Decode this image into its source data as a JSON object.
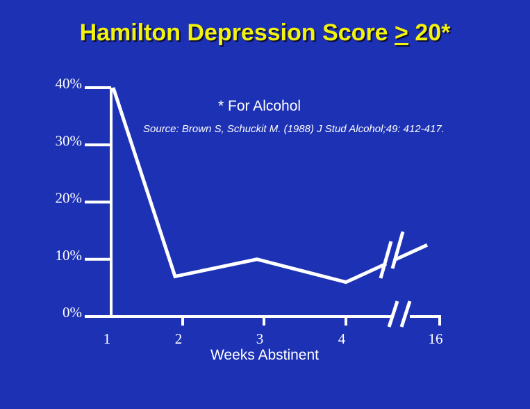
{
  "title": {
    "prefix": "Hamilton Depression Score ",
    "operator": ">",
    "suffix": " 20*"
  },
  "notes": {
    "footnote": "* For Alcohol",
    "source": "Source: Brown S, Schuckit M. (1988) J Stud Alcohol;49: 412-417."
  },
  "colors": {
    "background": "#1d31b4",
    "title": "#f2f20f",
    "ink": "#ffffff"
  },
  "chart_data": {
    "type": "line",
    "title": "Hamilton Depression Score > 20*",
    "xlabel": "Weeks Abstinent",
    "ylabel": "",
    "categories": [
      "1",
      "2",
      "3",
      "4",
      "16"
    ],
    "x_axis_break": "between 4 and 16",
    "ylim": [
      0,
      40
    ],
    "y_ticks": [
      0,
      10,
      20,
      30,
      40
    ],
    "y_tick_labels": [
      "0%",
      "10%",
      "20%",
      "30%",
      "40%"
    ],
    "series": [
      {
        "values": [
          40,
          7,
          10,
          6,
          12.5
        ]
      }
    ],
    "grid": false,
    "legend": "none"
  }
}
